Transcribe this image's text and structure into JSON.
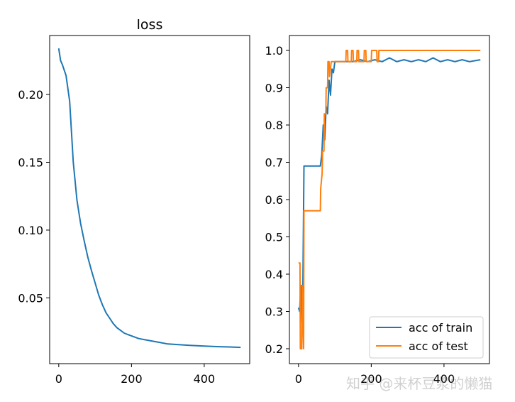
{
  "chart_data": [
    {
      "type": "line",
      "title": "loss",
      "xlabel": "",
      "ylabel": "",
      "xlim": [
        -25,
        525
      ],
      "ylim": [
        0.0015,
        0.2435
      ],
      "xticks": [
        0,
        200,
        400
      ],
      "yticks": [
        0.05,
        0.1,
        0.15,
        0.2
      ],
      "ytick_labels": [
        "0.05",
        "0.10",
        "0.15",
        "0.20"
      ],
      "xtick_labels": [
        "0",
        "200",
        "400"
      ],
      "series": [
        {
          "name": "loss",
          "color": "#1f77b4",
          "x": [
            0,
            5,
            10,
            20,
            30,
            40,
            50,
            60,
            70,
            80,
            90,
            100,
            110,
            120,
            130,
            140,
            150,
            160,
            170,
            180,
            190,
            200,
            220,
            240,
            260,
            280,
            300,
            330,
            360,
            400,
            440,
            470,
            500
          ],
          "y": [
            0.234,
            0.225,
            0.222,
            0.214,
            0.195,
            0.15,
            0.122,
            0.105,
            0.092,
            0.08,
            0.07,
            0.061,
            0.052,
            0.045,
            0.039,
            0.035,
            0.031,
            0.028,
            0.026,
            0.024,
            0.023,
            0.022,
            0.02,
            0.019,
            0.018,
            0.017,
            0.016,
            0.0155,
            0.015,
            0.0145,
            0.014,
            0.0138,
            0.0135
          ]
        }
      ]
    },
    {
      "type": "line",
      "title": "",
      "xlabel": "",
      "ylabel": "",
      "xlim": [
        -25,
        525
      ],
      "ylim": [
        0.16,
        1.04
      ],
      "xticks": [
        0,
        200,
        400
      ],
      "xtick_labels": [
        "0",
        "200",
        "400"
      ],
      "yticks": [
        0.2,
        0.3,
        0.4,
        0.5,
        0.6,
        0.7,
        0.8,
        0.9,
        1.0
      ],
      "ytick_labels": [
        "0.2",
        "0.3",
        "0.4",
        "0.5",
        "0.6",
        "0.7",
        "0.8",
        "0.9",
        "1.0"
      ],
      "legend_position": "bottom-right",
      "series": [
        {
          "name": "acc of train",
          "color": "#1f77b4",
          "x": [
            0,
            3,
            6,
            9,
            12,
            15,
            20,
            40,
            60,
            64,
            68,
            72,
            76,
            80,
            84,
            88,
            92,
            96,
            100,
            110,
            130,
            150,
            170,
            190,
            210,
            230,
            250,
            270,
            290,
            310,
            330,
            350,
            370,
            390,
            410,
            430,
            450,
            470,
            500
          ],
          "y": [
            0.31,
            0.3,
            0.37,
            0.27,
            0.37,
            0.69,
            0.69,
            0.69,
            0.69,
            0.72,
            0.8,
            0.76,
            0.85,
            0.83,
            0.92,
            0.88,
            0.95,
            0.94,
            0.97,
            0.97,
            0.97,
            0.97,
            0.975,
            0.97,
            0.975,
            0.97,
            0.98,
            0.97,
            0.975,
            0.97,
            0.975,
            0.97,
            0.98,
            0.97,
            0.975,
            0.97,
            0.975,
            0.97,
            0.975
          ]
        },
        {
          "name": "acc of test",
          "color": "#ff7f0e",
          "x": [
            0,
            4,
            5,
            9,
            10,
            14,
            15,
            20,
            60,
            61,
            65,
            66,
            70,
            71,
            75,
            76,
            80,
            81,
            84,
            85,
            90,
            130,
            131,
            135,
            136,
            145,
            146,
            150,
            151,
            160,
            161,
            165,
            166,
            180,
            181,
            185,
            186,
            200,
            201,
            215,
            216,
            220,
            221,
            500
          ],
          "y": [
            0.43,
            0.43,
            0.2,
            0.2,
            0.37,
            0.2,
            0.57,
            0.57,
            0.57,
            0.63,
            0.67,
            0.73,
            0.73,
            0.83,
            0.83,
            0.9,
            0.9,
            0.97,
            0.97,
            0.93,
            0.97,
            0.97,
            1.0,
            1.0,
            0.97,
            0.97,
            1.0,
            1.0,
            0.97,
            0.97,
            1.0,
            1.0,
            0.97,
            0.97,
            1.0,
            1.0,
            0.97,
            0.97,
            1.0,
            1.0,
            0.97,
            0.97,
            1.0,
            1.0
          ]
        }
      ]
    }
  ],
  "watermark": "知乎 @来杯豆浆的懒猫"
}
